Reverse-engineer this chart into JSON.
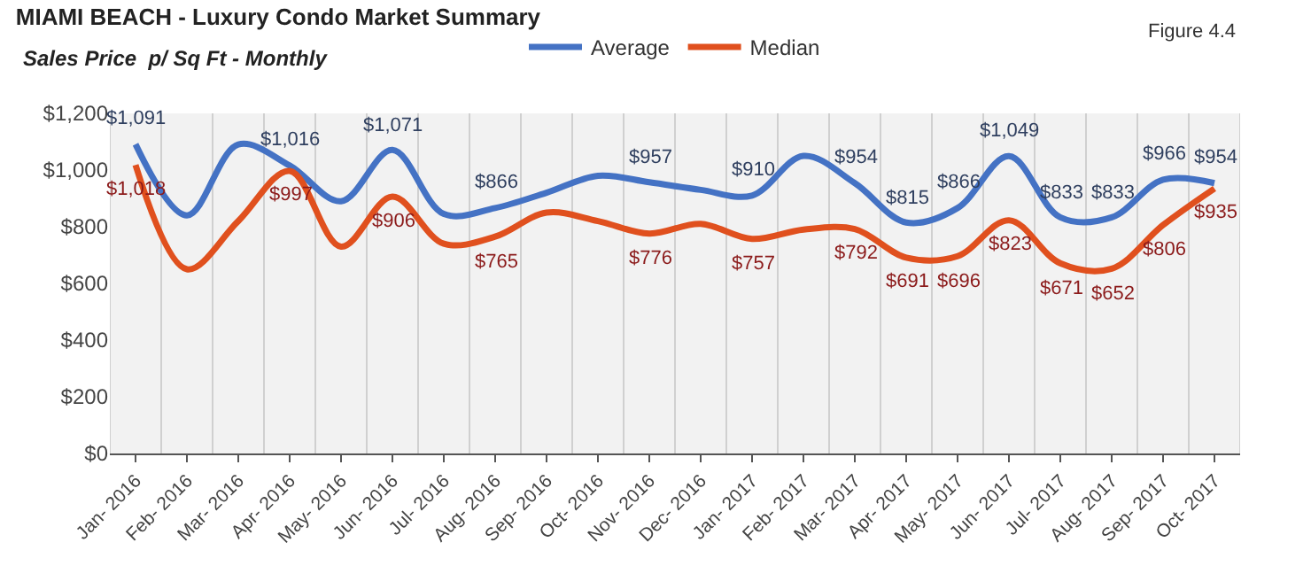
{
  "chart_data": {
    "type": "line",
    "title": "MIAMI BEACH - Luxury Condo Market Summary",
    "subtitle": "Sales Price  p/ Sq Ft - Monthly",
    "annotations": [
      "Figure 4.4"
    ],
    "categories": [
      "Jan- 2016",
      "Feb- 2016",
      "Mar- 2016",
      "Apr- 2016",
      "May- 2016",
      "Jun- 2016",
      "Jul- 2016",
      "Aug- 2016",
      "Sep- 2016",
      "Oct- 2016",
      "Nov- 2016",
      "Dec- 2016",
      "Jan- 2017",
      "Feb- 2017",
      "Mar- 2017",
      "Apr- 2017",
      "May- 2017",
      "Jun- 2017",
      "Jul- 2017",
      "Aug- 2017",
      "Sep- 2017",
      "Oct- 2017"
    ],
    "series": [
      {
        "name": "Average",
        "color": "#4472c4",
        "values": [
          1091,
          840,
          1090,
          1016,
          890,
          1071,
          845,
          866,
          920,
          980,
          957,
          930,
          910,
          1050,
          954,
          815,
          866,
          1049,
          833,
          833,
          966,
          954
        ],
        "value_labels": [
          "$1,091",
          null,
          null,
          "$1,016",
          null,
          "$1,071",
          null,
          "$866",
          null,
          null,
          "$957",
          null,
          "$910",
          null,
          "$954",
          "$815",
          "$866",
          "$1,049",
          "$833",
          "$833",
          "$966",
          "$954"
        ]
      },
      {
        "name": "Median",
        "color": "#e0501e",
        "values": [
          1018,
          650,
          820,
          997,
          730,
          906,
          740,
          765,
          850,
          820,
          776,
          810,
          757,
          790,
          792,
          691,
          696,
          823,
          671,
          652,
          806,
          935
        ],
        "value_labels": [
          "$1,018",
          null,
          null,
          "$997",
          null,
          "$906",
          null,
          "$765",
          null,
          null,
          "$776",
          null,
          "$757",
          null,
          "$792",
          "$691",
          "$696",
          "$823",
          "$671",
          "$652",
          "$806",
          "$935"
        ]
      }
    ],
    "ylim": [
      0,
      1200
    ],
    "yticks": [
      {
        "value": 0,
        "label": "$0"
      },
      {
        "value": 200,
        "label": "$200"
      },
      {
        "value": 400,
        "label": "$400"
      },
      {
        "value": 600,
        "label": "$600"
      },
      {
        "value": 800,
        "label": "$800"
      },
      {
        "value": 1000,
        "label": "$1,000"
      },
      {
        "value": 1200,
        "label": "$1,200"
      }
    ],
    "grid": "x",
    "legend": "top",
    "marker": "none",
    "line_style": "solid"
  }
}
